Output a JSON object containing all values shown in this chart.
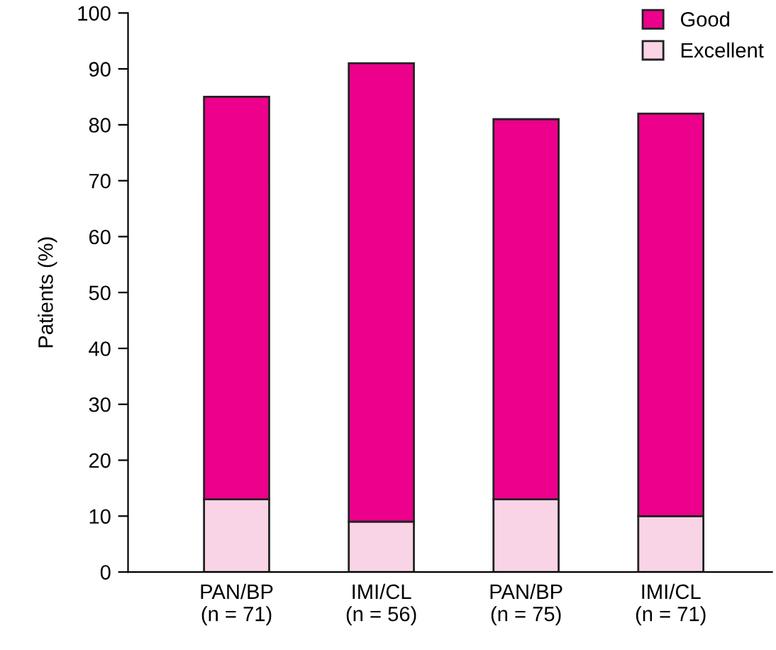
{
  "chart_data": {
    "type": "bar",
    "stacked": true,
    "ylabel": "Patients (%)",
    "categories": [
      "PAN/BP\n(n = 71)",
      "IMI/CL\n(n = 56)",
      "PAN/BP\n(n = 75)",
      "IMI/CL\n(n = 71)"
    ],
    "series": [
      {
        "name": "Excellent",
        "color": "#f9d4e6",
        "values": [
          13,
          9,
          13,
          10
        ]
      },
      {
        "name": "Good",
        "color": "#ec008c",
        "values": [
          72,
          82,
          68,
          72
        ]
      }
    ],
    "ylim": [
      0,
      100
    ],
    "yticks": [
      0,
      10,
      20,
      30,
      40,
      50,
      60,
      70,
      80,
      90,
      100
    ],
    "grid": false,
    "legend": "top right"
  }
}
